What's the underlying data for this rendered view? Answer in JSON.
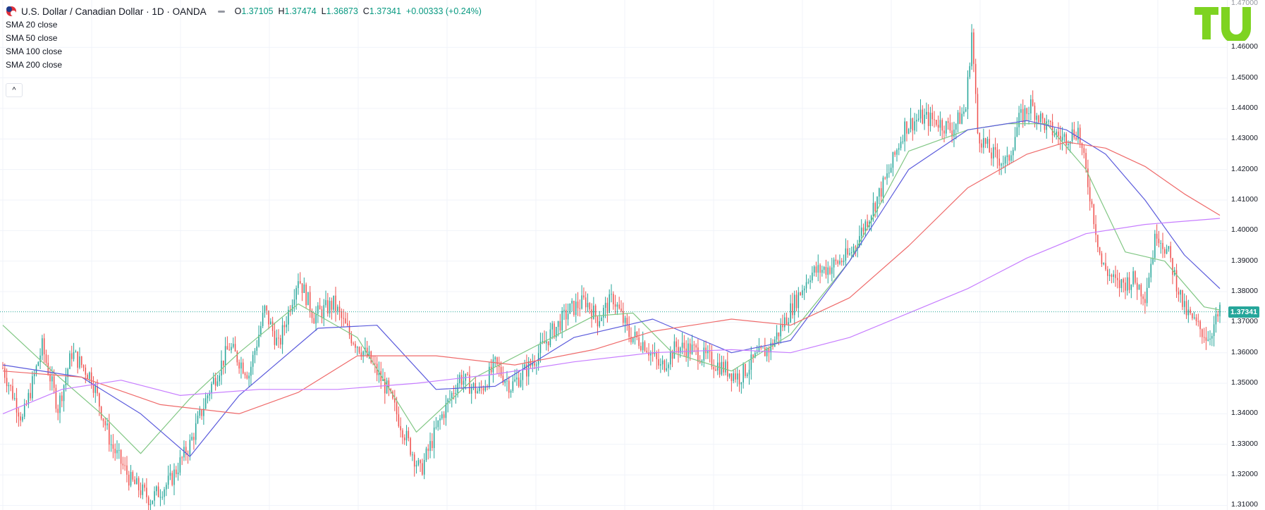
{
  "header": {
    "symbol": "U.S. Dollar / Canadian Dollar · 1D · OANDA",
    "open": "O1.37105",
    "high": "H1.37474",
    "low": "L1.36873",
    "close": "C1.37341",
    "change": "+0.00333 (+0.24%)"
  },
  "indicators": [
    "SMA 20 close",
    "SMA 50 close",
    "SMA 100 close",
    "SMA 200 close"
  ],
  "collapse_label": "^",
  "logo_text": "TU",
  "colors": {
    "up": "#26a69a",
    "down": "#ef5350",
    "sma20": "#81c784",
    "sma50": "#5b5bdc",
    "sma100": "#ef6a6a",
    "sma200": "#c77dff",
    "price_tag": "#26a69a"
  },
  "chart_data": {
    "type": "candlestick",
    "ylim": [
      1.3085,
      1.4755
    ],
    "y_ticks": [
      "1.46000",
      "1.45000",
      "1.44000",
      "1.43000",
      "1.42000",
      "1.41000",
      "1.40000",
      "1.39000",
      "1.38000",
      "1.37000",
      "1.36000",
      "1.35000",
      "1.34000",
      "1.33000",
      "1.32000",
      "1.31000"
    ],
    "top_tick_partial": "1.47000",
    "last_price": "1.37341",
    "price_path": [
      [
        0,
        1.355
      ],
      [
        10,
        1.338
      ],
      [
        20,
        1.362
      ],
      [
        28,
        1.342
      ],
      [
        35,
        1.36
      ],
      [
        45,
        1.352
      ],
      [
        55,
        1.33
      ],
      [
        65,
        1.318
      ],
      [
        75,
        1.312
      ],
      [
        85,
        1.318
      ],
      [
        95,
        1.33
      ],
      [
        105,
        1.348
      ],
      [
        115,
        1.362
      ],
      [
        125,
        1.353
      ],
      [
        133,
        1.374
      ],
      [
        140,
        1.362
      ],
      [
        150,
        1.385
      ],
      [
        158,
        1.372
      ],
      [
        168,
        1.376
      ],
      [
        176,
        1.366
      ],
      [
        186,
        1.358
      ],
      [
        195,
        1.348
      ],
      [
        205,
        1.332
      ],
      [
        212,
        1.321
      ],
      [
        222,
        1.338
      ],
      [
        232,
        1.352
      ],
      [
        242,
        1.347
      ],
      [
        250,
        1.356
      ],
      [
        258,
        1.349
      ],
      [
        268,
        1.356
      ],
      [
        278,
        1.366
      ],
      [
        288,
        1.374
      ],
      [
        296,
        1.377
      ],
      [
        302,
        1.371
      ],
      [
        310,
        1.378
      ],
      [
        318,
        1.366
      ],
      [
        326,
        1.363
      ],
      [
        334,
        1.355
      ],
      [
        342,
        1.362
      ],
      [
        350,
        1.361
      ],
      [
        358,
        1.358
      ],
      [
        366,
        1.355
      ],
      [
        374,
        1.352
      ],
      [
        382,
        1.358
      ],
      [
        390,
        1.362
      ],
      [
        400,
        1.374
      ],
      [
        410,
        1.386
      ],
      [
        420,
        1.388
      ],
      [
        430,
        1.392
      ],
      [
        440,
        1.405
      ],
      [
        450,
        1.419
      ],
      [
        458,
        1.434
      ],
      [
        466,
        1.437
      ],
      [
        474,
        1.436
      ],
      [
        482,
        1.433
      ],
      [
        489,
        1.44
      ],
      [
        492,
        1.465
      ],
      [
        495,
        1.432
      ],
      [
        502,
        1.425
      ],
      [
        510,
        1.422
      ],
      [
        516,
        1.436
      ],
      [
        522,
        1.441
      ],
      [
        530,
        1.434
      ],
      [
        538,
        1.43
      ],
      [
        546,
        1.433
      ],
      [
        552,
        1.412
      ],
      [
        558,
        1.389
      ],
      [
        566,
        1.382
      ],
      [
        574,
        1.384
      ],
      [
        580,
        1.379
      ],
      [
        586,
        1.4
      ],
      [
        592,
        1.392
      ],
      [
        600,
        1.374
      ],
      [
        606,
        1.369
      ],
      [
        612,
        1.365
      ],
      [
        618,
        1.373
      ]
    ],
    "series": [
      {
        "name": "SMA 20 close",
        "values": [
          [
            0,
            1.369
          ],
          [
            25,
            1.354
          ],
          [
            50,
            1.34
          ],
          [
            70,
            1.327
          ],
          [
            95,
            1.345
          ],
          [
            120,
            1.36
          ],
          [
            150,
            1.376
          ],
          [
            180,
            1.365
          ],
          [
            210,
            1.334
          ],
          [
            240,
            1.352
          ],
          [
            270,
            1.362
          ],
          [
            300,
            1.372
          ],
          [
            320,
            1.373
          ],
          [
            340,
            1.36
          ],
          [
            370,
            1.354
          ],
          [
            400,
            1.366
          ],
          [
            430,
            1.39
          ],
          [
            460,
            1.426
          ],
          [
            490,
            1.433
          ],
          [
            510,
            1.435
          ],
          [
            530,
            1.435
          ],
          [
            550,
            1.42
          ],
          [
            570,
            1.393
          ],
          [
            590,
            1.39
          ],
          [
            610,
            1.375
          ],
          [
            618,
            1.374
          ]
        ]
      },
      {
        "name": "SMA 50 close",
        "values": [
          [
            0,
            1.356
          ],
          [
            40,
            1.352
          ],
          [
            70,
            1.34
          ],
          [
            95,
            1.326
          ],
          [
            120,
            1.346
          ],
          [
            160,
            1.368
          ],
          [
            190,
            1.369
          ],
          [
            220,
            1.348
          ],
          [
            250,
            1.349
          ],
          [
            290,
            1.365
          ],
          [
            330,
            1.371
          ],
          [
            370,
            1.36
          ],
          [
            400,
            1.364
          ],
          [
            430,
            1.39
          ],
          [
            460,
            1.42
          ],
          [
            490,
            1.433
          ],
          [
            520,
            1.436
          ],
          [
            540,
            1.433
          ],
          [
            560,
            1.425
          ],
          [
            580,
            1.41
          ],
          [
            600,
            1.392
          ],
          [
            618,
            1.381
          ]
        ]
      },
      {
        "name": "SMA 100 close",
        "values": [
          [
            0,
            1.354
          ],
          [
            40,
            1.352
          ],
          [
            80,
            1.343
          ],
          [
            120,
            1.34
          ],
          [
            150,
            1.347
          ],
          [
            180,
            1.359
          ],
          [
            220,
            1.359
          ],
          [
            260,
            1.356
          ],
          [
            300,
            1.361
          ],
          [
            330,
            1.367
          ],
          [
            370,
            1.371
          ],
          [
            400,
            1.369
          ],
          [
            430,
            1.378
          ],
          [
            460,
            1.395
          ],
          [
            490,
            1.414
          ],
          [
            520,
            1.425
          ],
          [
            540,
            1.429
          ],
          [
            560,
            1.427
          ],
          [
            580,
            1.421
          ],
          [
            600,
            1.412
          ],
          [
            618,
            1.405
          ]
        ]
      },
      {
        "name": "SMA 200 close",
        "values": [
          [
            0,
            1.34
          ],
          [
            30,
            1.348
          ],
          [
            60,
            1.351
          ],
          [
            90,
            1.346
          ],
          [
            130,
            1.348
          ],
          [
            170,
            1.348
          ],
          [
            210,
            1.35
          ],
          [
            250,
            1.353
          ],
          [
            290,
            1.357
          ],
          [
            330,
            1.36
          ],
          [
            370,
            1.361
          ],
          [
            400,
            1.36
          ],
          [
            430,
            1.365
          ],
          [
            460,
            1.373
          ],
          [
            490,
            1.381
          ],
          [
            520,
            1.391
          ],
          [
            550,
            1.399
          ],
          [
            580,
            1.402
          ],
          [
            618,
            1.404
          ]
        ]
      }
    ]
  }
}
